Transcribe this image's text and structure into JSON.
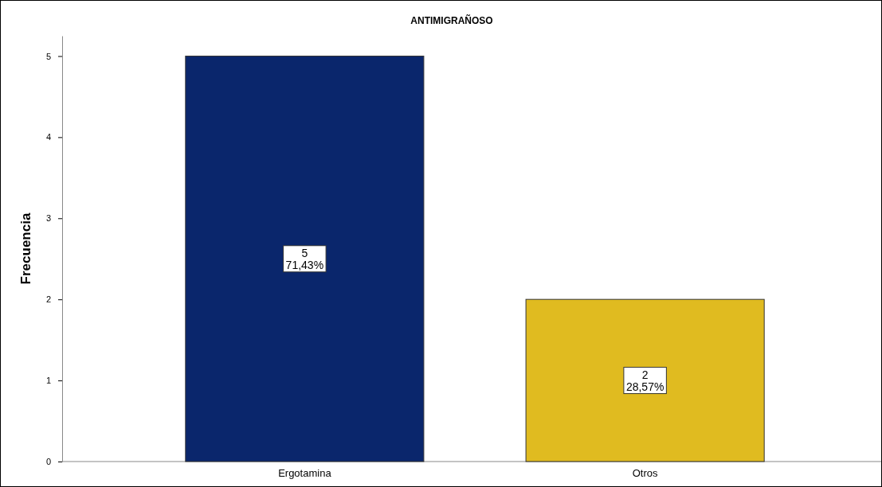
{
  "chart_data": {
    "type": "bar",
    "title": "ANTIMIGRAÑOSO",
    "ylabel": "Frecuencia",
    "categories": [
      "Ergotamina",
      "Otros"
    ],
    "values": [
      5,
      2
    ],
    "colors": [
      "#0a266c",
      "#e0bb20"
    ],
    "value_labels": [
      "5\n71,43%",
      "2\n28,57%"
    ],
    "ylim": [
      0,
      5.25
    ],
    "yticks": [
      0,
      1,
      2,
      3,
      4,
      5
    ],
    "grid": false
  }
}
